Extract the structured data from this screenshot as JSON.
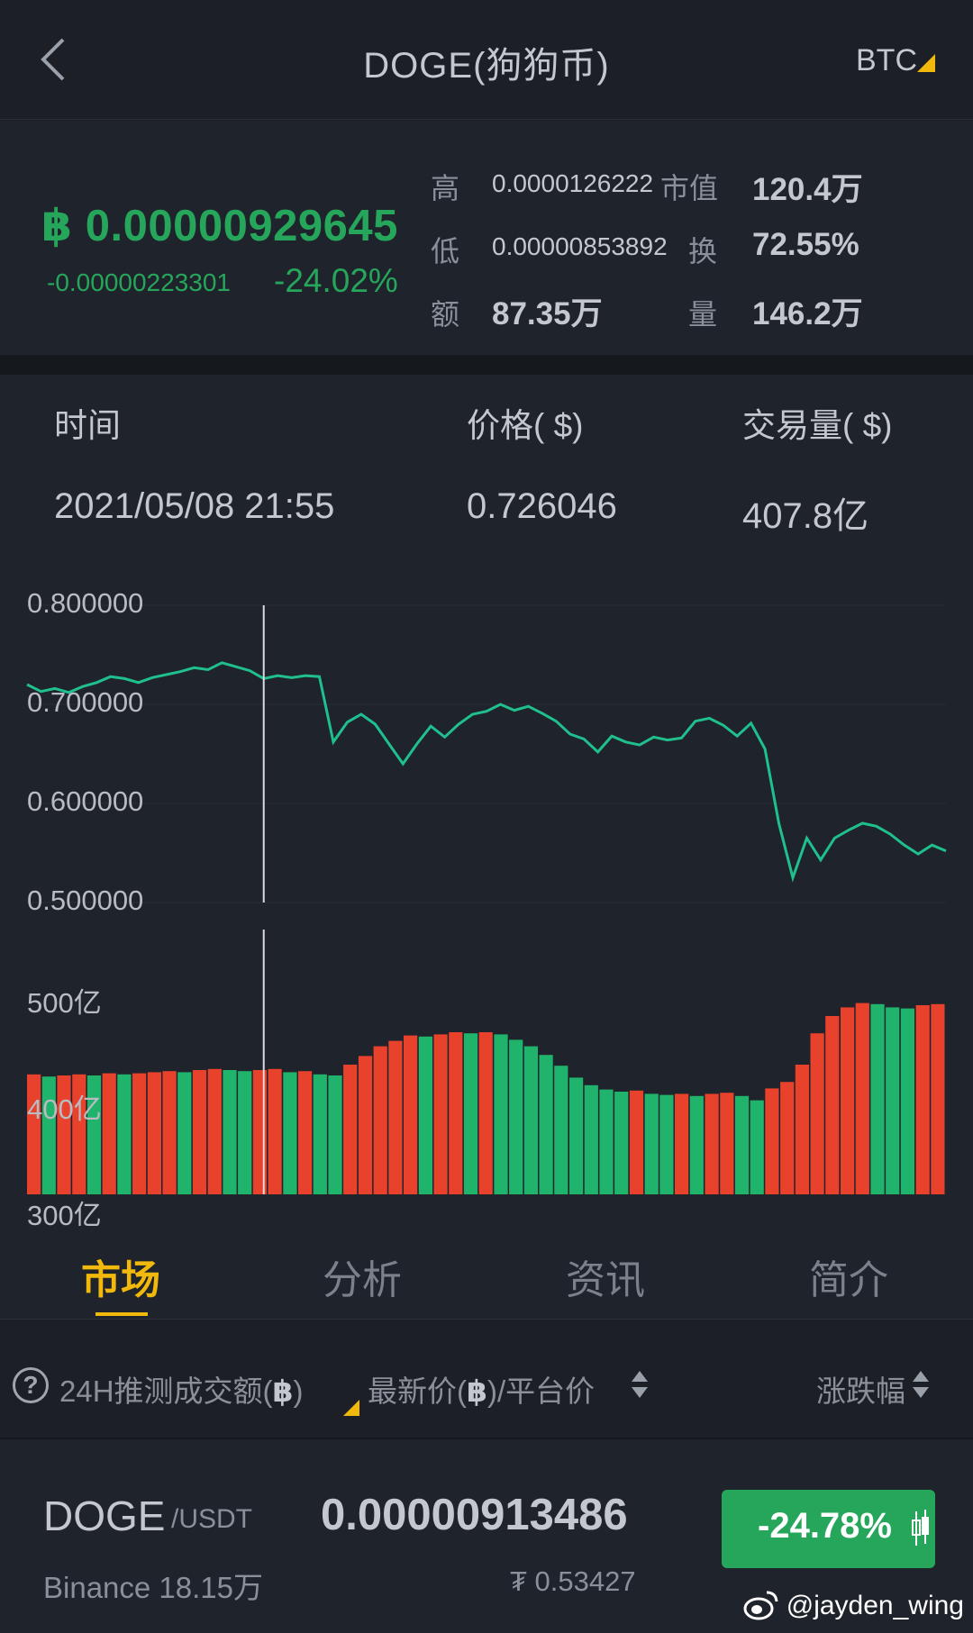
{
  "header": {
    "title": "DOGE(狗狗币)",
    "quote_selector": "BTC"
  },
  "summary": {
    "price": "฿ 0.00000929645",
    "change_abs": "-0.00000223301",
    "change_pct": "-24.02%",
    "stats": [
      {
        "label": "高",
        "value": "0.0000126222"
      },
      {
        "label": "市值",
        "value": "120.4万"
      },
      {
        "label": "低",
        "value": "0.00000853892"
      },
      {
        "label": "换",
        "value": "72.55%"
      },
      {
        "label": "额",
        "value": "87.35万"
      },
      {
        "label": "量",
        "value": "146.2万"
      }
    ],
    "accent_green": "#26a65b"
  },
  "info": {
    "time_label": "时间",
    "price_label": "价格( $)",
    "volume_label": "交易量( $)",
    "time_value": "2021/05/08 21:55",
    "price_value": "0.726046",
    "volume_value": "407.8亿"
  },
  "chart_data": [
    {
      "type": "line",
      "yticks": [
        "0.800000",
        "0.700000",
        "0.600000",
        "0.500000"
      ],
      "ylim": [
        0.5,
        0.8
      ],
      "color": "#1fc08d",
      "values": [
        0.72,
        0.713,
        0.716,
        0.712,
        0.718,
        0.722,
        0.728,
        0.726,
        0.722,
        0.727,
        0.73,
        0.733,
        0.737,
        0.735,
        0.742,
        0.738,
        0.734,
        0.726,
        0.729,
        0.727,
        0.729,
        0.728,
        0.662,
        0.682,
        0.69,
        0.68,
        0.66,
        0.64,
        0.66,
        0.678,
        0.667,
        0.68,
        0.69,
        0.693,
        0.7,
        0.694,
        0.698,
        0.691,
        0.683,
        0.67,
        0.665,
        0.652,
        0.668,
        0.662,
        0.659,
        0.667,
        0.664,
        0.666,
        0.683,
        0.686,
        0.679,
        0.668,
        0.681,
        0.655,
        0.58,
        0.525,
        0.565,
        0.543,
        0.565,
        0.573,
        0.58,
        0.577,
        0.569,
        0.558,
        0.549,
        0.558,
        0.552
      ],
      "cursor_index": 17
    },
    {
      "type": "bar",
      "yticks": [
        "500亿",
        "400亿",
        "300亿"
      ],
      "ylim": [
        300,
        500
      ],
      "up_color": "#e8412c",
      "down_color": "#1fb36b",
      "values": [
        411,
        409,
        410,
        411,
        410,
        412,
        411,
        412,
        413,
        414,
        413,
        415,
        416,
        415,
        414,
        415,
        416,
        413,
        414,
        411,
        410,
        420,
        428,
        437,
        442,
        447,
        446,
        448,
        450,
        449,
        450,
        448,
        443,
        437,
        429,
        419,
        408,
        401,
        397,
        395,
        396,
        393,
        392,
        393,
        391,
        393,
        394,
        391,
        387,
        398,
        404,
        420,
        449,
        465,
        473,
        477,
        476,
        473,
        472,
        475,
        476
      ]
    }
  ],
  "tabs": [
    {
      "label": "市场",
      "active": true
    },
    {
      "label": "分析",
      "active": false
    },
    {
      "label": "资讯",
      "active": false
    },
    {
      "label": "简介",
      "active": false
    }
  ],
  "sort_header": {
    "volume_prefix": "24H推测成交额(",
    "volume_suffix": ")",
    "coin_symbol": "฿",
    "price_prefix": "最新价(",
    "price_suffix": ")/平台价",
    "change": "涨跌幅",
    "help_icon": "?"
  },
  "market": {
    "base": "DOGE",
    "quote": "/USDT",
    "exchange": "Binance 18.15万",
    "price": "0.00000913486",
    "usdt_price": "₮ 0.53427",
    "change": "-24.78%"
  },
  "watermark": "@jayden_wing"
}
